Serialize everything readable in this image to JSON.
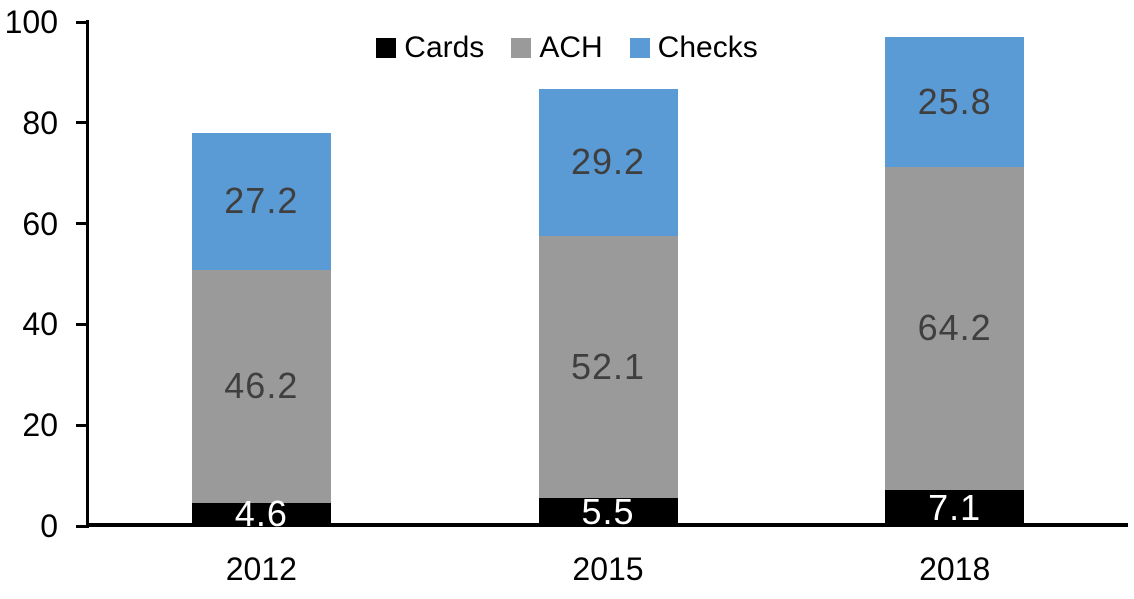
{
  "chart_data": {
    "type": "bar",
    "stacked": true,
    "title": "",
    "xlabel": "",
    "ylabel": "",
    "categories": [
      "2012",
      "2015",
      "2018"
    ],
    "series": [
      {
        "name": "Cards",
        "color": "#000000",
        "label_color": "#FFFFFF",
        "values": [
          4.6,
          5.5,
          7.1
        ]
      },
      {
        "name": "ACH",
        "color": "#9A9A9A",
        "label_color": "#3F3F3F",
        "values": [
          46.2,
          52.1,
          64.2
        ]
      },
      {
        "name": "Checks",
        "color": "#5B9BD5",
        "label_color": "#3F3F3F",
        "values": [
          27.2,
          29.2,
          25.8
        ]
      }
    ],
    "ylim": [
      0,
      100
    ],
    "yticks": [
      0,
      20,
      40,
      60,
      80,
      100
    ],
    "grid": false,
    "legend_position": "top-center",
    "axis_color": "#000000",
    "tick_label_color": "#000000"
  }
}
